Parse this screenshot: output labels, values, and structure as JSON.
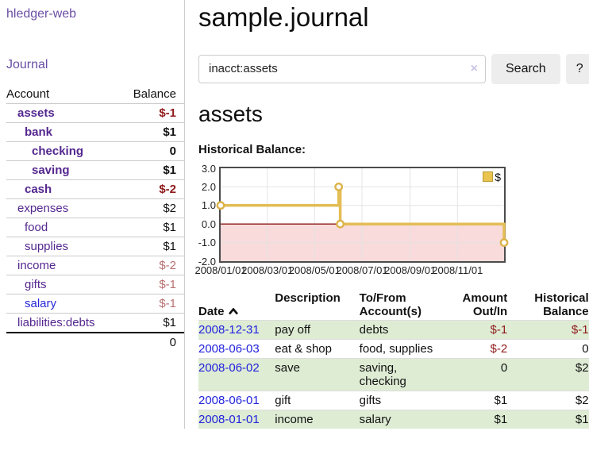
{
  "app": {
    "brand": "hledger-web",
    "nav": {
      "journal": "Journal"
    }
  },
  "sidebar": {
    "header": {
      "account": "Account",
      "balance": "Balance"
    },
    "rows": [
      {
        "name": "assets",
        "balance": "$-1"
      },
      {
        "name": "bank",
        "balance": "$1"
      },
      {
        "name": "checking",
        "balance": "0"
      },
      {
        "name": "saving",
        "balance": "$1"
      },
      {
        "name": "cash",
        "balance": "$-2"
      },
      {
        "name": "expenses",
        "balance": "$2"
      },
      {
        "name": "food",
        "balance": "$1"
      },
      {
        "name": "supplies",
        "balance": "$1"
      },
      {
        "name": "income",
        "balance": "$-2"
      },
      {
        "name": "gifts",
        "balance": "$-1"
      },
      {
        "name": "salary",
        "balance": "$-1"
      },
      {
        "name": "liabilities:debts",
        "balance": "$1"
      }
    ],
    "total": "0"
  },
  "main": {
    "title": "sample.journal",
    "search": {
      "value": "inacct:assets",
      "clear_icon": "×",
      "button": "Search",
      "help": "?"
    },
    "account_title": "assets",
    "chart_label": "Historical Balance:"
  },
  "chart_data": {
    "type": "line",
    "title": "Historical Balance",
    "step": true,
    "series": [
      {
        "name": "$",
        "points": [
          {
            "x": "2008/01/01",
            "y": 1
          },
          {
            "x": "2008/06/01",
            "y": 2
          },
          {
            "x": "2008/06/03",
            "y": 0
          },
          {
            "x": "2008/12/31",
            "y": -1
          }
        ]
      }
    ],
    "ylim": [
      -2,
      3
    ],
    "yticks": [
      "3.0",
      "2.0",
      "1.0",
      "0.0",
      "-1.0",
      "-2.0"
    ],
    "xticks": [
      "2008/01/01",
      "2008/03/01",
      "2008/05/01",
      "2008/07/01",
      "2008/09/01",
      "2008/11/01"
    ],
    "xrange": [
      "2008/01/01",
      "2008/12/31"
    ],
    "grid": true,
    "legend": {
      "label": "$",
      "position": "top-right"
    },
    "colors": {
      "line": "#e4bd55",
      "marker_ring": "#dcb34a",
      "marker_fill": "#ffffff",
      "negative_region": "#f9dbdb",
      "zero_line": "#8c1616",
      "gridline": "#e2e2e2",
      "border": "#4c4c4c",
      "legend_swatch": "#e9c54f"
    }
  },
  "register": {
    "headers": {
      "date": "Date",
      "description": "Description",
      "to_from": "To/From\nAccount(s)",
      "amount": "Amount\nOut/In",
      "balance": "Historical\nBalance"
    },
    "rows": [
      {
        "date": "2008-12-31",
        "description": "pay off",
        "to_from": "debts",
        "amount": "$-1",
        "balance": "$-1"
      },
      {
        "date": "2008-06-03",
        "description": "eat & shop",
        "to_from": "food, supplies",
        "amount": "$-2",
        "balance": "0"
      },
      {
        "date": "2008-06-02",
        "description": "save",
        "to_from": "saving,\nchecking",
        "amount": "0",
        "balance": "$2"
      },
      {
        "date": "2008-06-01",
        "description": "gift",
        "to_from": "gifts",
        "amount": "$1",
        "balance": "$2"
      },
      {
        "date": "2008-01-01",
        "description": "income",
        "to_from": "salary",
        "amount": "$1",
        "balance": "$1"
      }
    ]
  }
}
